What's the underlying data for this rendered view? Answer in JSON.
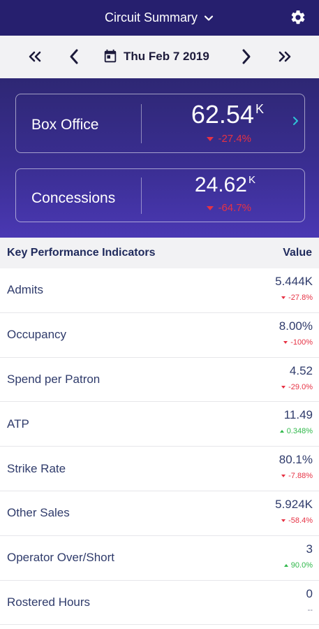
{
  "header": {
    "title": "Circuit Summary",
    "icons": {
      "title_dropdown": "chevron-down-icon",
      "settings": "gear-icon"
    }
  },
  "date_nav": {
    "date": "Thu Feb 7 2019",
    "icons": {
      "first": "double-chevron-left-icon",
      "prev": "chevron-left-icon",
      "calendar": "calendar-icon",
      "next": "chevron-right-icon",
      "last": "double-chevron-right-icon"
    }
  },
  "cards": {
    "box_office": {
      "label": "Box Office",
      "value": "62.54",
      "unit": "K",
      "change": "-27.4%",
      "direction": "down"
    },
    "concessions": {
      "label": "Concessions",
      "value": "24.62",
      "unit": "K",
      "change": "-64.7%",
      "direction": "down"
    }
  },
  "kpi": {
    "header_label": "Key Performance Indicators",
    "header_value": "Value",
    "rows": [
      {
        "name": "Admits",
        "value": "5.444K",
        "change": "-27.8%",
        "direction": "down"
      },
      {
        "name": "Occupancy",
        "value": "8.00%",
        "change": "-100%",
        "direction": "down"
      },
      {
        "name": "Spend per Patron",
        "value": "4.52",
        "change": "-29.0%",
        "direction": "down"
      },
      {
        "name": "ATP",
        "value": "11.49",
        "change": "0.348%",
        "direction": "up"
      },
      {
        "name": "Strike Rate",
        "value": "80.1%",
        "change": "-7.88%",
        "direction": "down"
      },
      {
        "name": "Other Sales",
        "value": "5.924K",
        "change": "-58.4%",
        "direction": "down"
      },
      {
        "name": "Operator Over/Short",
        "value": "3",
        "change": "90.0%",
        "direction": "up"
      },
      {
        "name": "Rostered Hours",
        "value": "0",
        "change": "--",
        "direction": "none"
      }
    ]
  },
  "colors": {
    "header_bg": "#261f6e",
    "hero_bg_top": "#2e2774",
    "hero_bg_bottom": "#4a38b3",
    "negative": "#e63244",
    "positive": "#2fb84a",
    "text": "#2f3b6b"
  }
}
